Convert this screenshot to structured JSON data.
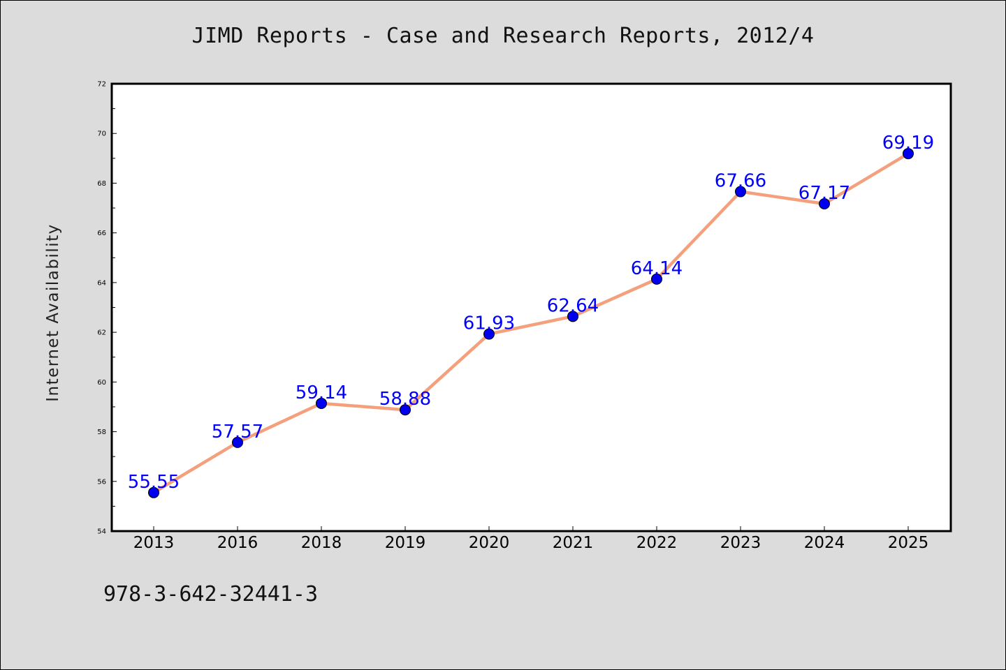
{
  "chart_data": {
    "type": "line",
    "title": "JIMD Reports - Case and Research Reports, 2012/4",
    "xlabel": "",
    "ylabel": "Internet Availability",
    "categories": [
      "2013",
      "2016",
      "2018",
      "2019",
      "2020",
      "2021",
      "2022",
      "2023",
      "2024",
      "2025"
    ],
    "series": [
      {
        "values": [
          55.55,
          57.57,
          59.14,
          58.88,
          61.93,
          62.64,
          64.14,
          67.66,
          67.17,
          69.19
        ]
      }
    ],
    "data_labels": [
      "55.55",
      "57.57",
      "59.14",
      "58.88",
      "61.93",
      "62.64",
      "64.14",
      "67.66",
      "67.17",
      "69.19"
    ],
    "ylim": [
      54,
      72
    ],
    "y_ticks": [
      "54",
      "56",
      "58",
      "60",
      "62",
      "64",
      "66",
      "68",
      "70",
      "72"
    ],
    "grid": false,
    "colors": {
      "line": "#f4a07c",
      "marker": "#0000ee",
      "data_label": "#0000ff",
      "plot_background": "#ffffff",
      "figure_background": "#dcdcdc"
    }
  },
  "footer": {
    "isbn": "978-3-642-32441-3"
  }
}
